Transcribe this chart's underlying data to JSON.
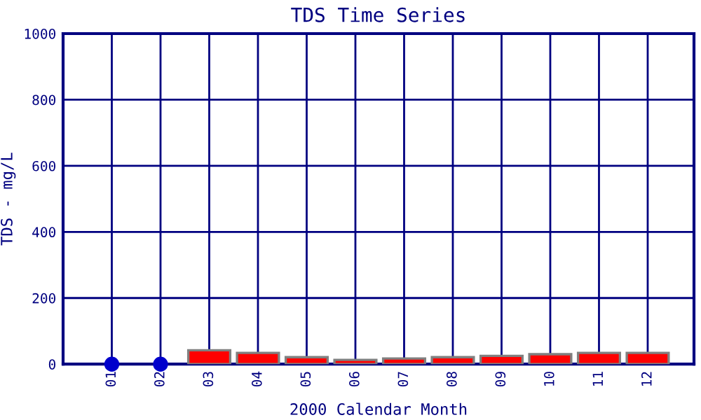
{
  "chart_data": {
    "type": "bar",
    "title": "TDS Time Series",
    "xlabel": "2000 Calendar Month",
    "ylabel": "TDS - mg/L",
    "categories": [
      "01",
      "02",
      "03",
      "04",
      "05",
      "06",
      "07",
      "08",
      "09",
      "10",
      "11",
      "12"
    ],
    "series": [
      {
        "color": "#ff0000",
        "values": [
          null,
          null,
          42,
          34,
          21,
          13,
          17,
          21,
          25,
          30,
          34,
          34
        ]
      },
      {
        "type": "scatter",
        "color": "#0000cc",
        "marker": "circle",
        "x": [
          "01",
          "02"
        ],
        "values": [
          0,
          0
        ]
      }
    ],
    "ylim": [
      0,
      1000
    ],
    "yticks": [
      0,
      200,
      400,
      600,
      800,
      1000
    ],
    "grid": true,
    "legend": false
  }
}
